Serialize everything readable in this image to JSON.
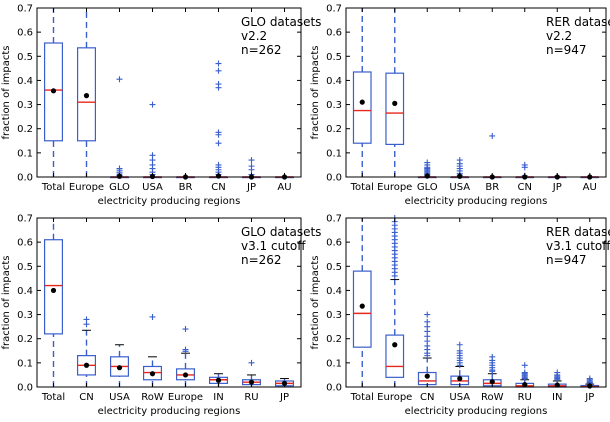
{
  "chart_data": [
    {
      "type": "box",
      "annotation": [
        "GLO datasets",
        "v2.2",
        "n=262"
      ],
      "xlabel": "electricity producing regions",
      "ylabel": "fraction of impacts",
      "ylim": [
        0,
        0.7
      ],
      "yticks": [
        "0.0",
        "0.1",
        "0.2",
        "0.3",
        "0.4",
        "0.5",
        "0.6",
        "0.7"
      ],
      "categories": [
        "Total",
        "Europe",
        "GLO",
        "USA",
        "BR",
        "CN",
        "JP",
        "AU"
      ],
      "boxes": [
        {
          "q1": 0.15,
          "median": 0.36,
          "q3": 0.555,
          "whislo": 0.0,
          "whishi": 0.7,
          "mean": 0.357,
          "fliers": []
        },
        {
          "q1": 0.15,
          "median": 0.31,
          "q3": 0.535,
          "whislo": 0.0,
          "whishi": 0.7,
          "mean": 0.337,
          "fliers": []
        },
        {
          "q1": 0.0,
          "median": 0.0,
          "q3": 0.0,
          "whislo": 0.0,
          "whishi": 0.0,
          "mean": 0.003,
          "fliers": [
            0.405,
            0.035,
            0.028,
            0.02,
            0.012,
            0.006
          ]
        },
        {
          "q1": 0.0,
          "median": 0.0,
          "q3": 0.0,
          "whislo": 0.0,
          "whishi": 0.0,
          "mean": 0.002,
          "fliers": [
            0.3,
            0.09,
            0.07,
            0.05,
            0.035,
            0.02,
            0.01
          ]
        },
        {
          "q1": 0.0,
          "median": 0.0,
          "q3": 0.0,
          "whislo": 0.0,
          "whishi": 0.0,
          "mean": 0.0,
          "fliers": []
        },
        {
          "q1": 0.0,
          "median": 0.0,
          "q3": 0.0,
          "whislo": 0.0,
          "whishi": 0.0,
          "mean": 0.004,
          "fliers": [
            0.47,
            0.44,
            0.385,
            0.37,
            0.185,
            0.175,
            0.14,
            0.05,
            0.04,
            0.03,
            0.02,
            0.01
          ]
        },
        {
          "q1": 0.0,
          "median": 0.0,
          "q3": 0.0,
          "whislo": 0.0,
          "whishi": 0.0,
          "mean": 0.0,
          "fliers": [
            0.07,
            0.045,
            0.03,
            0.01
          ]
        },
        {
          "q1": 0.0,
          "median": 0.0,
          "q3": 0.0,
          "whislo": 0.0,
          "whishi": 0.0,
          "mean": 0.0,
          "fliers": []
        }
      ]
    },
    {
      "type": "box",
      "annotation": [
        "RER datasets",
        "v2.2",
        "n=947"
      ],
      "xlabel": "electricity producing regions",
      "ylabel": "fraction of impacts",
      "ylim": [
        0,
        0.7
      ],
      "yticks": [
        "0.0",
        "0.1",
        "0.2",
        "0.3",
        "0.4",
        "0.5",
        "0.6",
        "0.7"
      ],
      "categories": [
        "Total",
        "Europe",
        "GLO",
        "USA",
        "BR",
        "CN",
        "JP",
        "AU"
      ],
      "boxes": [
        {
          "q1": 0.14,
          "median": 0.275,
          "q3": 0.435,
          "whislo": 0.0,
          "whishi": 0.7,
          "mean": 0.31,
          "fliers": []
        },
        {
          "q1": 0.135,
          "median": 0.265,
          "q3": 0.43,
          "whislo": 0.0,
          "whishi": 0.7,
          "mean": 0.305,
          "fliers": []
        },
        {
          "q1": 0.0,
          "median": 0.0,
          "q3": 0.0,
          "whislo": 0.0,
          "whishi": 0.0,
          "mean": 0.004,
          "fliers": [
            0.06,
            0.05,
            0.04,
            0.035,
            0.03,
            0.025,
            0.02,
            0.015,
            0.01,
            0.005
          ]
        },
        {
          "q1": 0.0,
          "median": 0.0,
          "q3": 0.0,
          "whislo": 0.0,
          "whishi": 0.0,
          "mean": 0.003,
          "fliers": [
            0.07,
            0.055,
            0.045,
            0.035,
            0.025,
            0.015,
            0.008
          ]
        },
        {
          "q1": 0.0,
          "median": 0.0,
          "q3": 0.0,
          "whislo": 0.0,
          "whishi": 0.0,
          "mean": 0.0,
          "fliers": [
            0.17
          ]
        },
        {
          "q1": 0.0,
          "median": 0.0,
          "q3": 0.0,
          "whislo": 0.0,
          "whishi": 0.0,
          "mean": 0.0,
          "fliers": [
            0.05,
            0.04,
            0.005
          ]
        },
        {
          "q1": 0.0,
          "median": 0.0,
          "q3": 0.0,
          "whislo": 0.0,
          "whishi": 0.0,
          "mean": 0.0,
          "fliers": [
            0.003
          ]
        },
        {
          "q1": 0.0,
          "median": 0.0,
          "q3": 0.0,
          "whislo": 0.0,
          "whishi": 0.0,
          "mean": 0.0,
          "fliers": []
        }
      ]
    },
    {
      "type": "box",
      "annotation": [
        "GLO datasets",
        "v3.1 cutoff",
        "n=262"
      ],
      "xlabel": "electricity producing regions",
      "ylabel": "fraction of impacts",
      "ylim": [
        0,
        0.7
      ],
      "yticks": [
        "0.0",
        "0.1",
        "0.2",
        "0.3",
        "0.4",
        "0.5",
        "0.6",
        "0.7"
      ],
      "categories": [
        "Total",
        "CN",
        "USA",
        "RoW",
        "Europe",
        "IN",
        "RU",
        "JP"
      ],
      "boxes": [
        {
          "q1": 0.22,
          "median": 0.42,
          "q3": 0.61,
          "whislo": 0.0,
          "whishi": 0.7,
          "mean": 0.4,
          "fliers": []
        },
        {
          "q1": 0.05,
          "median": 0.09,
          "q3": 0.13,
          "whislo": 0.0,
          "whishi": 0.235,
          "mean": 0.09,
          "fliers": [
            0.28,
            0.26
          ]
        },
        {
          "q1": 0.045,
          "median": 0.085,
          "q3": 0.125,
          "whislo": 0.0,
          "whishi": 0.175,
          "mean": 0.08,
          "fliers": []
        },
        {
          "q1": 0.03,
          "median": 0.06,
          "q3": 0.085,
          "whislo": 0.0,
          "whishi": 0.125,
          "mean": 0.055,
          "fliers": [
            0.29
          ]
        },
        {
          "q1": 0.03,
          "median": 0.05,
          "q3": 0.075,
          "whislo": 0.0,
          "whishi": 0.14,
          "mean": 0.05,
          "fliers": [
            0.24,
            0.155,
            0.148
          ]
        },
        {
          "q1": 0.015,
          "median": 0.03,
          "q3": 0.04,
          "whislo": 0.0,
          "whishi": 0.055,
          "mean": 0.028,
          "fliers": []
        },
        {
          "q1": 0.01,
          "median": 0.02,
          "q3": 0.03,
          "whislo": 0.0,
          "whishi": 0.05,
          "mean": 0.02,
          "fliers": [
            0.1
          ]
        },
        {
          "q1": 0.005,
          "median": 0.015,
          "q3": 0.025,
          "whislo": 0.0,
          "whishi": 0.035,
          "mean": 0.015,
          "fliers": []
        }
      ]
    },
    {
      "type": "box",
      "annotation": [
        "RER datasets",
        "v3.1 cutoff",
        "n=947"
      ],
      "xlabel": "electricity producing regions",
      "ylabel": "fraction of impacts",
      "ylim": [
        0,
        0.7
      ],
      "yticks": [
        "0.0",
        "0.1",
        "0.2",
        "0.3",
        "0.4",
        "0.5",
        "0.6",
        "0.7"
      ],
      "categories": [
        "Total",
        "Europe",
        "CN",
        "USA",
        "RoW",
        "RU",
        "IN",
        "JP"
      ],
      "boxes": [
        {
          "q1": 0.165,
          "median": 0.305,
          "q3": 0.48,
          "whislo": 0.0,
          "whishi": 0.7,
          "mean": 0.335,
          "fliers": []
        },
        {
          "q1": 0.04,
          "median": 0.085,
          "q3": 0.215,
          "whislo": 0.0,
          "whishi": 0.445,
          "mean": 0.175,
          "fliers": [
            0.7,
            0.685,
            0.67,
            0.655,
            0.64,
            0.625,
            0.61,
            0.595,
            0.58,
            0.565,
            0.55,
            0.535,
            0.52,
            0.505,
            0.49,
            0.475,
            0.46
          ]
        },
        {
          "q1": 0.01,
          "median": 0.025,
          "q3": 0.06,
          "whislo": 0.0,
          "whishi": 0.12,
          "mean": 0.045,
          "fliers": [
            0.3,
            0.27,
            0.25,
            0.23,
            0.21,
            0.19,
            0.17,
            0.155,
            0.14,
            0.13
          ]
        },
        {
          "q1": 0.01,
          "median": 0.025,
          "q3": 0.045,
          "whislo": 0.0,
          "whishi": 0.085,
          "mean": 0.035,
          "fliers": [
            0.175,
            0.15,
            0.14,
            0.13,
            0.12,
            0.11,
            0.1,
            0.09
          ]
        },
        {
          "q1": 0.005,
          "median": 0.015,
          "q3": 0.03,
          "whislo": 0.0,
          "whishi": 0.055,
          "mean": 0.022,
          "fliers": [
            0.125,
            0.11,
            0.1,
            0.09,
            0.08,
            0.07,
            0.065
          ]
        },
        {
          "q1": 0.0,
          "median": 0.005,
          "q3": 0.015,
          "whislo": 0.0,
          "whishi": 0.03,
          "mean": 0.01,
          "fliers": [
            0.09,
            0.06,
            0.055,
            0.05,
            0.045,
            0.04,
            0.035
          ]
        },
        {
          "q1": 0.0,
          "median": 0.005,
          "q3": 0.012,
          "whislo": 0.0,
          "whishi": 0.025,
          "mean": 0.008,
          "fliers": [
            0.06,
            0.05,
            0.045,
            0.04,
            0.035,
            0.03
          ]
        },
        {
          "q1": 0.0,
          "median": 0.002,
          "q3": 0.006,
          "whislo": 0.0,
          "whishi": 0.012,
          "mean": 0.004,
          "fliers": [
            0.035,
            0.03,
            0.025,
            0.02,
            0.018,
            0.015
          ]
        }
      ]
    }
  ]
}
